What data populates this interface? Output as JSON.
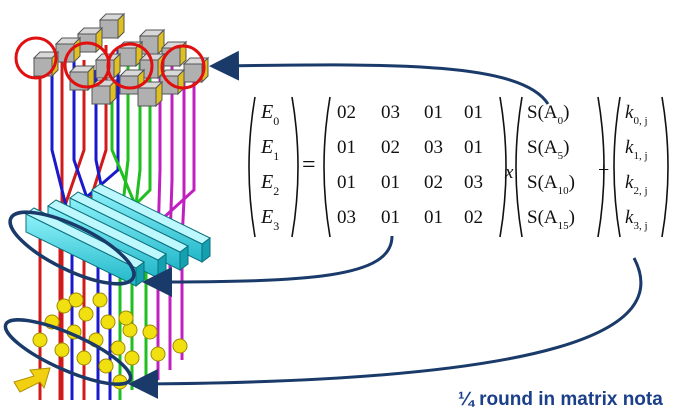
{
  "equation": {
    "lhs": [
      {
        "base": "E",
        "sub": "0"
      },
      {
        "base": "E",
        "sub": "1"
      },
      {
        "base": "E",
        "sub": "2"
      },
      {
        "base": "E",
        "sub": "3"
      }
    ],
    "equals": "=",
    "matrix": [
      [
        "02",
        "03",
        "01",
        "01"
      ],
      [
        "01",
        "02",
        "03",
        "01"
      ],
      [
        "01",
        "01",
        "02",
        "03"
      ],
      [
        "03",
        "01",
        "01",
        "02"
      ]
    ],
    "times": "x",
    "sbox": [
      {
        "pre": "S(A",
        "sub": "0",
        "post": ")"
      },
      {
        "pre": "S(A",
        "sub": "5",
        "post": ")"
      },
      {
        "pre": "S(A",
        "sub": "10",
        "post": ")"
      },
      {
        "pre": "S(A",
        "sub": "15",
        "post": ")"
      }
    ],
    "plus": "+",
    "key": [
      {
        "base": "k",
        "sub": "0, j"
      },
      {
        "base": "k",
        "sub": "1, j"
      },
      {
        "base": "k",
        "sub": "2, j"
      },
      {
        "base": "k",
        "sub": "3, j"
      }
    ]
  },
  "caption": "¼ round in matrix nota",
  "colors": {
    "wire_red": "#d11a1a",
    "wire_blue": "#1a1acc",
    "wire_green": "#1fbf1f",
    "wire_magenta": "#c020c0",
    "cube_face": "#b0b0b0",
    "cube_top": "#e0c020",
    "highlight_circle": "#e01010",
    "mix_bar": "#38d8e8",
    "xor_dot": "#f0e010",
    "ellipse": "#1a3a6a",
    "arrow": "#1a3a6a",
    "caption": "#1c3f8a",
    "input_arrow": "#f0d010"
  }
}
